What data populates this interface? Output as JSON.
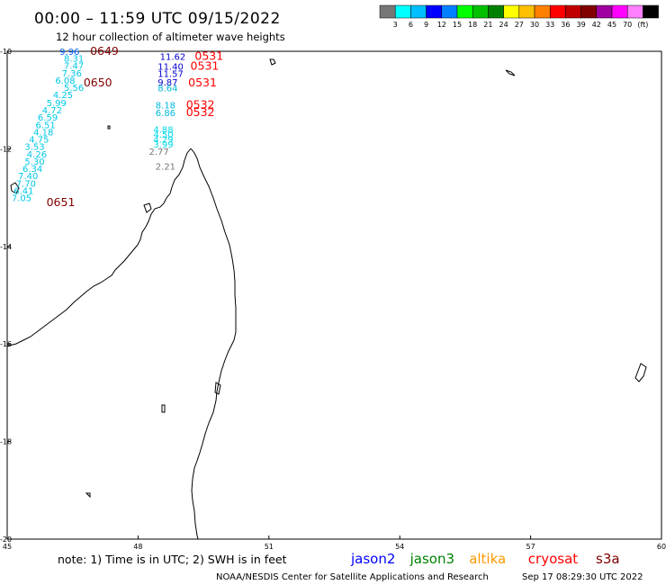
{
  "header": {
    "title": "00:00 – 11:59 UTC 09/15/2022",
    "subtitle": "12 hour collection of altimeter wave heights"
  },
  "colorbar": {
    "colors": [
      "#777777",
      "#00ffff",
      "#00bfff",
      "#0000ff",
      "#0080ff",
      "#00ff00",
      "#00c000",
      "#008000",
      "#ffff00",
      "#ffc000",
      "#ff8000",
      "#ff0000",
      "#c00000",
      "#800000",
      "#a000a0",
      "#ff00ff",
      "#ff80ff",
      "#000000"
    ],
    "labels": [
      "3",
      "6",
      "9",
      "12",
      "15",
      "18",
      "21",
      "24",
      "27",
      "30",
      "33",
      "36",
      "39",
      "42",
      "45",
      "70",
      "(ft)"
    ]
  },
  "axes": {
    "x_ticks": [
      "45",
      "48",
      "51",
      "54",
      "57",
      "60"
    ],
    "y_ticks": [
      "-10",
      "-12",
      "-14",
      "-16",
      "-18",
      "-20"
    ],
    "lon_range": [
      45,
      60
    ],
    "lat_range": [
      -20,
      -10
    ]
  },
  "observations": [
    {
      "text": "9.96",
      "lon": 46.2,
      "lat": -10.0,
      "color": "#0060ff"
    },
    {
      "text": "8.31",
      "lon": 46.3,
      "lat": -10.14,
      "color": "#00c8e6"
    },
    {
      "text": "7.47",
      "lon": 46.3,
      "lat": -10.29,
      "color": "#00c8e6"
    },
    {
      "text": "7.36",
      "lon": 46.25,
      "lat": -10.44,
      "color": "#00c8e6"
    },
    {
      "text": "6.08",
      "lon": 46.1,
      "lat": -10.59,
      "color": "#00c8e6"
    },
    {
      "text": "5.56",
      "lon": 46.3,
      "lat": -10.74,
      "color": "#00c8e6"
    },
    {
      "text": "4.25",
      "lon": 46.05,
      "lat": -10.89,
      "color": "#00c8e6"
    },
    {
      "text": "5.99",
      "lon": 45.9,
      "lat": -11.05,
      "color": "#00c8e6"
    },
    {
      "text": "4.72",
      "lon": 45.8,
      "lat": -11.2,
      "color": "#00c8e6"
    },
    {
      "text": "6.59",
      "lon": 45.7,
      "lat": -11.35,
      "color": "#00c8e6"
    },
    {
      "text": "6.51",
      "lon": 45.65,
      "lat": -11.5,
      "color": "#00c8e6"
    },
    {
      "text": "4.18",
      "lon": 45.6,
      "lat": -11.65,
      "color": "#00c8e6"
    },
    {
      "text": "4.75",
      "lon": 45.5,
      "lat": -11.8,
      "color": "#00c8e6"
    },
    {
      "text": "3.53",
      "lon": 45.4,
      "lat": -11.95,
      "color": "#00c8e6"
    },
    {
      "text": "4.26",
      "lon": 45.45,
      "lat": -12.1,
      "color": "#00c8e6"
    },
    {
      "text": "5.30",
      "lon": 45.4,
      "lat": -12.25,
      "color": "#00c8e6"
    },
    {
      "text": "6.34",
      "lon": 45.35,
      "lat": -12.4,
      "color": "#00c8e6"
    },
    {
      "text": "7.40",
      "lon": 45.25,
      "lat": -12.55,
      "color": "#00c8e6"
    },
    {
      "text": "7.70",
      "lon": 45.2,
      "lat": -12.7,
      "color": "#00c8e6"
    },
    {
      "text": "6.41",
      "lon": 45.15,
      "lat": -12.85,
      "color": "#00c8e6"
    },
    {
      "text": "7.05",
      "lon": 45.1,
      "lat": -13.0,
      "color": "#00c8e6"
    },
    {
      "text": "11.62",
      "lon": 48.5,
      "lat": -10.1,
      "color": "#0000cc"
    },
    {
      "text": "11.40",
      "lon": 48.45,
      "lat": -10.3,
      "color": "#0000cc"
    },
    {
      "text": "11.57",
      "lon": 48.45,
      "lat": -10.45,
      "color": "#0000cc"
    },
    {
      "text": "9.87",
      "lon": 48.45,
      "lat": -10.63,
      "color": "#0000cc"
    },
    {
      "text": "8.64",
      "lon": 48.45,
      "lat": -10.75,
      "color": "#00b8d8"
    },
    {
      "text": "8.18",
      "lon": 48.4,
      "lat": -11.1,
      "color": "#00b8d8"
    },
    {
      "text": "6.86",
      "lon": 48.4,
      "lat": -11.25,
      "color": "#00b8d8"
    },
    {
      "text": "4.88",
      "lon": 48.35,
      "lat": -11.6,
      "color": "#00d8e8"
    },
    {
      "text": "4.50",
      "lon": 48.35,
      "lat": -11.7,
      "color": "#00d8e8"
    },
    {
      "text": "4.29",
      "lon": 48.35,
      "lat": -11.8,
      "color": "#00d8e8"
    },
    {
      "text": "3.99",
      "lon": 48.35,
      "lat": -11.9,
      "color": "#00d8e8"
    },
    {
      "text": "2.77",
      "lon": 48.25,
      "lat": -12.05,
      "color": "#777777"
    },
    {
      "text": "2.21",
      "lon": 48.4,
      "lat": -12.35,
      "color": "#777777"
    }
  ],
  "pass_times": [
    {
      "text": "0649",
      "lon": 46.9,
      "lat": -10.0,
      "color": "#800000"
    },
    {
      "text": "0650",
      "lon": 46.75,
      "lat": -10.65,
      "color": "#800000"
    },
    {
      "text": "0651",
      "lon": 45.9,
      "lat": -13.1,
      "color": "#800000"
    },
    {
      "text": "0531",
      "lon": 49.3,
      "lat": -10.1,
      "color": "#ff0000"
    },
    {
      "text": "0531",
      "lon": 49.2,
      "lat": -10.3,
      "color": "#ff0000"
    },
    {
      "text": "0531",
      "lon": 49.15,
      "lat": -10.65,
      "color": "#ff0000"
    },
    {
      "text": "0532",
      "lon": 49.1,
      "lat": -11.1,
      "color": "#ff0000"
    },
    {
      "text": "0532",
      "lon": 49.1,
      "lat": -11.25,
      "color": "#ff0000"
    }
  ],
  "notes": {
    "text": "note:  1) Time is in UTC;  2) SWH is in feet",
    "satellites": [
      {
        "name": "jason2",
        "color": "#0000ff"
      },
      {
        "name": "jason3",
        "color": "#008000"
      },
      {
        "name": "altika",
        "color": "#ff9900"
      },
      {
        "name": "cryosat",
        "color": "#ff0000"
      },
      {
        "name": "s3a",
        "color": "#800000"
      }
    ]
  },
  "footer": {
    "source": "NOAA/NESDIS Center for Satellite Applications and Research",
    "timestamp": "Sep 17 08:29:30 UTC 2022"
  }
}
